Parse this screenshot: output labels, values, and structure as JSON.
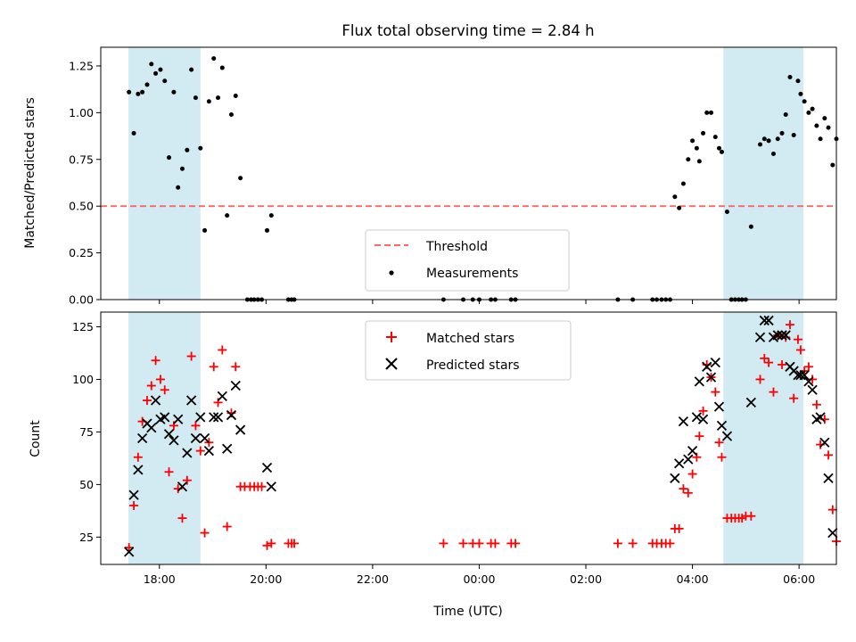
{
  "chart_data": [
    {
      "type": "scatter",
      "title": "Flux total observing time = 2.84 h",
      "ylabel": "Matched/Predicted stars",
      "xlabel": "",
      "x_unit": "hours since 2023-01-01 00:00 UTC",
      "xlim": [
        16.9,
        30.7
      ],
      "ylim": [
        0,
        1.35
      ],
      "yticks": [
        0.0,
        0.25,
        0.5,
        0.75,
        1.0,
        1.25
      ],
      "ytick_labels": [
        "0.00",
        "0.25",
        "0.50",
        "0.75",
        "1.00",
        "1.25"
      ],
      "xticks": [
        18,
        20,
        22,
        24,
        26,
        28,
        30
      ],
      "xtick_labels": [
        "18:00",
        "20:00",
        "22:00",
        "00:00",
        "02:00",
        "04:00",
        "06:00"
      ],
      "shaded_regions": [
        [
          17.42,
          18.77
        ],
        [
          28.58,
          30.08
        ]
      ],
      "shade_color": "#add8e6",
      "threshold": 0.5,
      "threshold_color": "#ff6666",
      "legend": [
        "Threshold",
        "Measurements"
      ],
      "series": [
        {
          "name": "Measurements",
          "marker": "dot",
          "color": "#000000",
          "points": [
            [
              17.43,
              1.11
            ],
            [
              17.52,
              0.89
            ],
            [
              17.6,
              1.1
            ],
            [
              17.68,
              1.11
            ],
            [
              17.77,
              1.15
            ],
            [
              17.85,
              1.26
            ],
            [
              17.93,
              1.21
            ],
            [
              18.02,
              1.23
            ],
            [
              18.1,
              1.17
            ],
            [
              18.18,
              0.76
            ],
            [
              18.27,
              1.11
            ],
            [
              18.35,
              0.6
            ],
            [
              18.43,
              0.7
            ],
            [
              18.52,
              0.8
            ],
            [
              18.6,
              1.23
            ],
            [
              18.68,
              1.08
            ],
            [
              18.77,
              0.81
            ],
            [
              18.85,
              0.37
            ],
            [
              18.93,
              1.06
            ],
            [
              19.02,
              1.29
            ],
            [
              19.1,
              1.08
            ],
            [
              19.18,
              1.24
            ],
            [
              19.27,
              0.45
            ],
            [
              19.35,
              0.99
            ],
            [
              19.43,
              1.09
            ],
            [
              19.52,
              0.65
            ],
            [
              19.65,
              0.0
            ],
            [
              19.72,
              0.0
            ],
            [
              19.78,
              0.0
            ],
            [
              19.85,
              0.0
            ],
            [
              19.92,
              0.0
            ],
            [
              20.02,
              0.37
            ],
            [
              20.1,
              0.45
            ],
            [
              20.42,
              0.0
            ],
            [
              20.48,
              0.0
            ],
            [
              20.53,
              0.0
            ],
            [
              23.33,
              0.0
            ],
            [
              23.7,
              0.0
            ],
            [
              23.88,
              0.0
            ],
            [
              24.0,
              0.0
            ],
            [
              24.22,
              0.0
            ],
            [
              24.3,
              0.0
            ],
            [
              24.6,
              0.0
            ],
            [
              24.68,
              0.0
            ],
            [
              26.6,
              0.0
            ],
            [
              26.88,
              0.0
            ],
            [
              27.25,
              0.0
            ],
            [
              27.33,
              0.0
            ],
            [
              27.42,
              0.0
            ],
            [
              27.5,
              0.0
            ],
            [
              27.58,
              0.0
            ],
            [
              27.67,
              0.55
            ],
            [
              27.75,
              0.49
            ],
            [
              27.83,
              0.62
            ],
            [
              27.92,
              0.75
            ],
            [
              28.0,
              0.85
            ],
            [
              28.08,
              0.81
            ],
            [
              28.13,
              0.74
            ],
            [
              28.2,
              0.89
            ],
            [
              28.27,
              1.0
            ],
            [
              28.35,
              1.0
            ],
            [
              28.43,
              0.87
            ],
            [
              28.5,
              0.81
            ],
            [
              28.55,
              0.79
            ],
            [
              28.65,
              0.47
            ],
            [
              28.73,
              0.0
            ],
            [
              28.8,
              0.0
            ],
            [
              28.87,
              0.0
            ],
            [
              28.93,
              0.0
            ],
            [
              29.0,
              0.0
            ],
            [
              29.1,
              0.39
            ],
            [
              29.27,
              0.83
            ],
            [
              29.35,
              0.86
            ],
            [
              29.43,
              0.85
            ],
            [
              29.52,
              0.78
            ],
            [
              29.6,
              0.86
            ],
            [
              29.68,
              0.89
            ],
            [
              29.75,
              0.99
            ],
            [
              29.83,
              1.19
            ],
            [
              29.9,
              0.88
            ],
            [
              29.98,
              1.17
            ],
            [
              30.03,
              1.1
            ],
            [
              30.1,
              1.06
            ],
            [
              30.18,
              1.0
            ],
            [
              30.25,
              1.02
            ],
            [
              30.33,
              0.93
            ],
            [
              30.4,
              0.86
            ],
            [
              30.48,
              0.97
            ],
            [
              30.55,
              0.92
            ],
            [
              30.63,
              0.72
            ],
            [
              30.7,
              0.86
            ]
          ]
        }
      ]
    },
    {
      "type": "scatter",
      "title": "",
      "ylabel": "Count",
      "xlabel": "Time (UTC)",
      "x_unit": "hours since 2023-01-01 00:00 UTC",
      "xlim": [
        16.9,
        30.7
      ],
      "ylim": [
        12,
        132
      ],
      "yticks": [
        25,
        50,
        75,
        100,
        125
      ],
      "ytick_labels": [
        "25",
        "50",
        "75",
        "100",
        "125"
      ],
      "xticks": [
        18,
        20,
        22,
        24,
        26,
        28,
        30
      ],
      "xtick_labels": [
        "18:00",
        "20:00",
        "22:00",
        "00:00",
        "02:00",
        "04:00",
        "06:00"
      ],
      "shaded_regions": [
        [
          17.42,
          18.77
        ],
        [
          28.58,
          30.08
        ]
      ],
      "shade_color": "#add8e6",
      "legend": [
        "Matched stars",
        "Predicted stars"
      ],
      "series": [
        {
          "name": "Matched stars",
          "marker": "plus",
          "color": "#ff0000",
          "points": [
            [
              17.43,
              20
            ],
            [
              17.52,
              40
            ],
            [
              17.6,
              63
            ],
            [
              17.68,
              80
            ],
            [
              17.77,
              90
            ],
            [
              17.85,
              97
            ],
            [
              17.93,
              109
            ],
            [
              18.02,
              100
            ],
            [
              18.1,
              95
            ],
            [
              18.18,
              56
            ],
            [
              18.27,
              78
            ],
            [
              18.35,
              48
            ],
            [
              18.43,
              34
            ],
            [
              18.52,
              52
            ],
            [
              18.6,
              111
            ],
            [
              18.68,
              78
            ],
            [
              18.77,
              66
            ],
            [
              18.85,
              27
            ],
            [
              18.93,
              70
            ],
            [
              19.02,
              106
            ],
            [
              19.1,
              89
            ],
            [
              19.18,
              114
            ],
            [
              19.27,
              30
            ],
            [
              19.35,
              84
            ],
            [
              19.43,
              106
            ],
            [
              19.52,
              49
            ],
            [
              19.6,
              49
            ],
            [
              19.7,
              49
            ],
            [
              19.78,
              49
            ],
            [
              19.85,
              49
            ],
            [
              19.92,
              49
            ],
            [
              20.02,
              21
            ],
            [
              20.1,
              22
            ],
            [
              20.42,
              22
            ],
            [
              20.48,
              22
            ],
            [
              20.53,
              22
            ],
            [
              23.33,
              22
            ],
            [
              23.7,
              22
            ],
            [
              23.88,
              22
            ],
            [
              24.0,
              22
            ],
            [
              24.22,
              22
            ],
            [
              24.3,
              22
            ],
            [
              24.6,
              22
            ],
            [
              24.68,
              22
            ],
            [
              26.6,
              22
            ],
            [
              26.88,
              22
            ],
            [
              27.25,
              22
            ],
            [
              27.33,
              22
            ],
            [
              27.42,
              22
            ],
            [
              27.5,
              22
            ],
            [
              27.58,
              22
            ],
            [
              27.67,
              29
            ],
            [
              27.75,
              29
            ],
            [
              27.83,
              48
            ],
            [
              27.92,
              46
            ],
            [
              28.0,
              55
            ],
            [
              28.08,
              63
            ],
            [
              28.13,
              73
            ],
            [
              28.2,
              85
            ],
            [
              28.27,
              107
            ],
            [
              28.35,
              101
            ],
            [
              28.43,
              94
            ],
            [
              28.5,
              70
            ],
            [
              28.55,
              63
            ],
            [
              28.65,
              34
            ],
            [
              28.73,
              34
            ],
            [
              28.8,
              34
            ],
            [
              28.87,
              34
            ],
            [
              28.93,
              34
            ],
            [
              29.0,
              35
            ],
            [
              29.1,
              35
            ],
            [
              29.27,
              100
            ],
            [
              29.35,
              110
            ],
            [
              29.43,
              108
            ],
            [
              29.52,
              94
            ],
            [
              29.6,
              121
            ],
            [
              29.68,
              107
            ],
            [
              29.75,
              120
            ],
            [
              29.83,
              126
            ],
            [
              29.9,
              91
            ],
            [
              29.98,
              119
            ],
            [
              30.03,
              114
            ],
            [
              30.1,
              104
            ],
            [
              30.18,
              106
            ],
            [
              30.25,
              100
            ],
            [
              30.33,
              88
            ],
            [
              30.4,
              69
            ],
            [
              30.48,
              81
            ],
            [
              30.55,
              64
            ],
            [
              30.63,
              38
            ],
            [
              30.7,
              23
            ]
          ]
        },
        {
          "name": "Predicted stars",
          "marker": "x",
          "color": "#000000",
          "points": [
            [
              17.43,
              18
            ],
            [
              17.52,
              45
            ],
            [
              17.6,
              57
            ],
            [
              17.68,
              72
            ],
            [
              17.77,
              79
            ],
            [
              17.85,
              77
            ],
            [
              17.93,
              90
            ],
            [
              18.02,
              81
            ],
            [
              18.1,
              82
            ],
            [
              18.18,
              74
            ],
            [
              18.27,
              71
            ],
            [
              18.35,
              81
            ],
            [
              18.43,
              49
            ],
            [
              18.52,
              65
            ],
            [
              18.6,
              90
            ],
            [
              18.68,
              72
            ],
            [
              18.77,
              82
            ],
            [
              18.85,
              72
            ],
            [
              18.93,
              66
            ],
            [
              19.02,
              82
            ],
            [
              19.1,
              82
            ],
            [
              19.18,
              92
            ],
            [
              19.27,
              67
            ],
            [
              19.35,
              83
            ],
            [
              19.43,
              97
            ],
            [
              19.52,
              76
            ],
            [
              20.02,
              58
            ],
            [
              20.1,
              49
            ],
            [
              27.67,
              53
            ],
            [
              27.75,
              60
            ],
            [
              27.83,
              80
            ],
            [
              27.92,
              62
            ],
            [
              28.0,
              66
            ],
            [
              28.08,
              82
            ],
            [
              28.13,
              99
            ],
            [
              28.2,
              81
            ],
            [
              28.27,
              106
            ],
            [
              28.35,
              101
            ],
            [
              28.43,
              108
            ],
            [
              28.5,
              87
            ],
            [
              28.55,
              78
            ],
            [
              28.65,
              73
            ],
            [
              29.1,
              89
            ],
            [
              29.27,
              120
            ],
            [
              29.35,
              128
            ],
            [
              29.43,
              128
            ],
            [
              29.52,
              120
            ],
            [
              29.6,
              121
            ],
            [
              29.68,
              121
            ],
            [
              29.75,
              121
            ],
            [
              29.83,
              106
            ],
            [
              29.9,
              104
            ],
            [
              29.98,
              102
            ],
            [
              30.03,
              102
            ],
            [
              30.1,
              102
            ],
            [
              30.18,
              99
            ],
            [
              30.25,
              95
            ],
            [
              30.33,
              81
            ],
            [
              30.4,
              82
            ],
            [
              30.48,
              70
            ],
            [
              30.55,
              53
            ],
            [
              30.63,
              27
            ]
          ]
        }
      ]
    }
  ]
}
